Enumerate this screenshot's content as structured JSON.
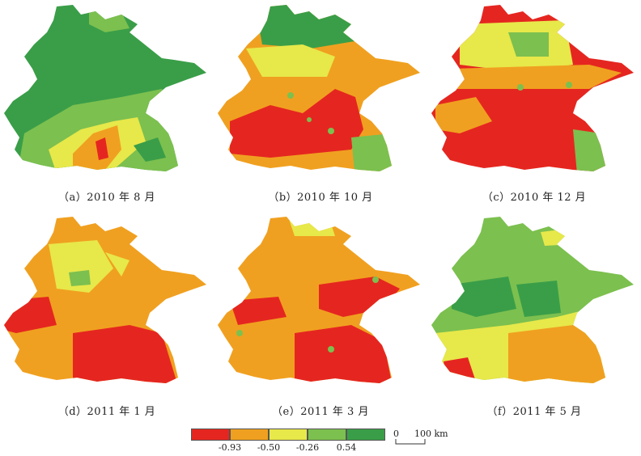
{
  "panels": [
    {
      "caption": "（a）2010 年 8 月",
      "dominant": "#3a9e48",
      "secondary": "#7cc04f",
      "accent": "#f0a020",
      "hot": "#e52620"
    },
    {
      "caption": "（b）2010 年 10 月",
      "dominant": "#f0a020",
      "secondary": "#e52620",
      "accent": "#e7e84a",
      "hot": "#3a9e48"
    },
    {
      "caption": "（c）2010 年 12 月",
      "dominant": "#e52620",
      "secondary": "#f0a020",
      "accent": "#e7e84a",
      "hot": "#7cc04f"
    },
    {
      "caption": "（d）2011 年 1 月",
      "dominant": "#f0a020",
      "secondary": "#e52620",
      "accent": "#e7e84a",
      "hot": "#7cc04f"
    },
    {
      "caption": "（e）2011 年 3 月",
      "dominant": "#f0a020",
      "secondary": "#e52620",
      "accent": "#e7e84a",
      "hot": "#7cc04f"
    },
    {
      "caption": "（f）2011 年 5 月",
      "dominant": "#7cc04f",
      "secondary": "#3a9e48",
      "accent": "#e7e84a",
      "hot": "#e52620"
    }
  ],
  "legend": {
    "colors": [
      "#e52620",
      "#f0a020",
      "#e7e84a",
      "#7cc04f",
      "#3a9e48"
    ],
    "labels": [
      "-0.93",
      "-0.50",
      "-0.26",
      "0.54"
    ]
  },
  "scalebar": {
    "zero": "0",
    "distance": "100 km"
  }
}
